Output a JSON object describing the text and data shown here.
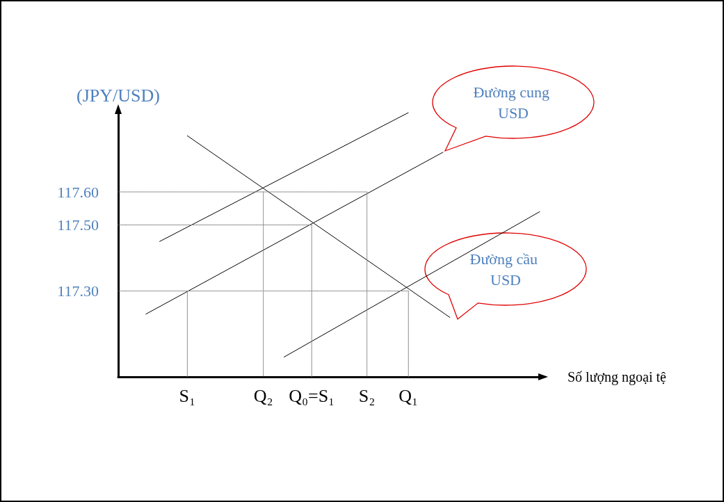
{
  "chart_data": {
    "type": "line",
    "ylabel": "(JPY/USD)",
    "xlabel": "Số lượng ngoại tệ",
    "categories": [
      null,
      null,
      null,
      null,
      null,
      null,
      null,
      null,
      null,
      null,
      "S₁",
      null,
      null,
      null,
      null,
      null,
      null,
      null,
      null,
      null,
      null,
      "Q₂",
      null,
      null,
      null,
      null,
      null,
      null,
      "Q₀=S₁",
      null,
      null,
      null,
      null,
      null,
      null,
      null,
      "S₂",
      null,
      null,
      null,
      null,
      null,
      "Q₁",
      null,
      null,
      null,
      null,
      null,
      null,
      null,
      null,
      null,
      null,
      null,
      null,
      null,
      null,
      null,
      null,
      null,
      null,
      null
    ],
    "ylim": [
      117.04,
      117.84
    ],
    "yticks": [
      {
        "value": 117.3,
        "label": "117.30"
      },
      {
        "value": 117.5,
        "label": "117.50"
      },
      {
        "value": 117.6,
        "label": "117.60"
      }
    ],
    "marker": "none",
    "series": [
      {
        "color": "#000000",
        "values": [
          null,
          null,
          null,
          null,
          null,
          null,
          117.45,
          null,
          null,
          null,
          null,
          null,
          null,
          null,
          null,
          null,
          null,
          null,
          null,
          null,
          null,
          null,
          null,
          null,
          null,
          null,
          null,
          null,
          null,
          null,
          null,
          null,
          null,
          null,
          null,
          null,
          null,
          null,
          null,
          null,
          null,
          null,
          117.84,
          null,
          null,
          null,
          null,
          null,
          null,
          null,
          null,
          null,
          null,
          null,
          null,
          null,
          null,
          null,
          null,
          null,
          null,
          null
        ]
      },
      {
        "color": "#000000",
        "values": [
          null,
          null,
          null,
          null,
          117.23,
          null,
          null,
          null,
          null,
          null,
          null,
          null,
          null,
          null,
          null,
          null,
          null,
          null,
          null,
          null,
          null,
          null,
          null,
          null,
          null,
          null,
          null,
          null,
          null,
          null,
          null,
          null,
          null,
          null,
          null,
          null,
          null,
          null,
          null,
          null,
          null,
          null,
          null,
          null,
          null,
          null,
          null,
          117.72,
          null,
          null,
          null,
          null,
          null,
          null,
          null,
          null,
          null,
          null,
          null,
          null,
          null,
          null
        ]
      },
      {
        "color": "#000000",
        "values": [
          null,
          null,
          null,
          null,
          null,
          null,
          null,
          null,
          null,
          null,
          null,
          null,
          null,
          null,
          null,
          null,
          null,
          null,
          null,
          null,
          null,
          null,
          null,
          null,
          117.1,
          null,
          null,
          null,
          null,
          null,
          null,
          null,
          null,
          null,
          null,
          null,
          null,
          null,
          null,
          null,
          null,
          null,
          null,
          null,
          null,
          null,
          null,
          null,
          null,
          null,
          null,
          null,
          null,
          null,
          null,
          null,
          null,
          null,
          null,
          null,
          null,
          117.54
        ]
      },
      {
        "color": "#000000",
        "values": [
          null,
          null,
          null,
          null,
          null,
          null,
          null,
          null,
          null,
          null,
          117.77,
          null,
          null,
          null,
          null,
          null,
          null,
          null,
          null,
          null,
          null,
          null,
          null,
          null,
          null,
          null,
          null,
          null,
          null,
          null,
          null,
          null,
          null,
          null,
          null,
          null,
          null,
          null,
          null,
          null,
          null,
          null,
          null,
          null,
          null,
          null,
          null,
          null,
          117.22,
          null,
          null,
          null,
          null,
          null,
          null,
          null,
          null,
          null,
          null,
          null,
          null,
          null
        ]
      },
      {
        "color": "#808080",
        "line_style": "dotted",
        "values": [
          117.6,
          null,
          null,
          null,
          null,
          null,
          null,
          null,
          null,
          null,
          null,
          null,
          null,
          null,
          null,
          null,
          null,
          null,
          null,
          null,
          null,
          null,
          null,
          null,
          null,
          null,
          null,
          null,
          null,
          null,
          null,
          null,
          null,
          null,
          null,
          null,
          117.6,
          null,
          null,
          null,
          null,
          null,
          null,
          null,
          null,
          null,
          null,
          null,
          null,
          null,
          null,
          null,
          null,
          null,
          null,
          null,
          null,
          null,
          null,
          null,
          null,
          null
        ]
      },
      {
        "color": "#808080",
        "line_style": "dotted",
        "values": [
          117.5,
          null,
          null,
          null,
          null,
          null,
          null,
          null,
          null,
          null,
          null,
          null,
          null,
          null,
          null,
          null,
          null,
          null,
          null,
          null,
          null,
          null,
          null,
          null,
          null,
          null,
          null,
          null,
          117.5,
          null,
          null,
          null,
          null,
          null,
          null,
          null,
          null,
          null,
          null,
          null,
          null,
          null,
          null,
          null,
          null,
          null,
          null,
          null,
          null,
          null,
          null,
          null,
          null,
          null,
          null,
          null,
          null,
          null,
          null,
          null,
          null,
          null
        ]
      },
      {
        "color": "#808080",
        "line_style": "dotted",
        "values": [
          117.3,
          null,
          null,
          null,
          null,
          null,
          null,
          null,
          null,
          null,
          null,
          null,
          null,
          null,
          null,
          null,
          null,
          null,
          null,
          null,
          null,
          null,
          null,
          null,
          null,
          null,
          null,
          null,
          null,
          null,
          null,
          null,
          null,
          null,
          null,
          null,
          null,
          null,
          null,
          null,
          null,
          null,
          117.3,
          null,
          null,
          null,
          null,
          null,
          null,
          null,
          null,
          null,
          null,
          null,
          null,
          null,
          null,
          null,
          null,
          null,
          null,
          null
        ]
      },
      {
        "color": "#808080",
        "line_style": "dotted",
        "x": [
          "S₁",
          "S₁"
        ],
        "values": [
          117.3,
          117.04
        ]
      },
      {
        "color": "#808080",
        "line_style": "dotted",
        "x": [
          "Q₂",
          "Q₂"
        ],
        "values": [
          117.6,
          117.04
        ]
      },
      {
        "color": "#808080",
        "line_style": "dotted",
        "x": [
          "Q₀=S₁",
          "Q₀=S₁"
        ],
        "values": [
          117.5,
          117.04
        ]
      },
      {
        "color": "#808080",
        "line_style": "dotted",
        "x": [
          "S₂",
          "S₂"
        ],
        "values": [
          117.6,
          117.04
        ]
      },
      {
        "color": "#808080",
        "line_style": "dotted",
        "x": [
          "Q₁",
          "Q₁"
        ],
        "values": [
          117.3,
          117.04
        ]
      }
    ],
    "annotations": [
      "Đường cung USD",
      "Đường cầu USD"
    ]
  }
}
